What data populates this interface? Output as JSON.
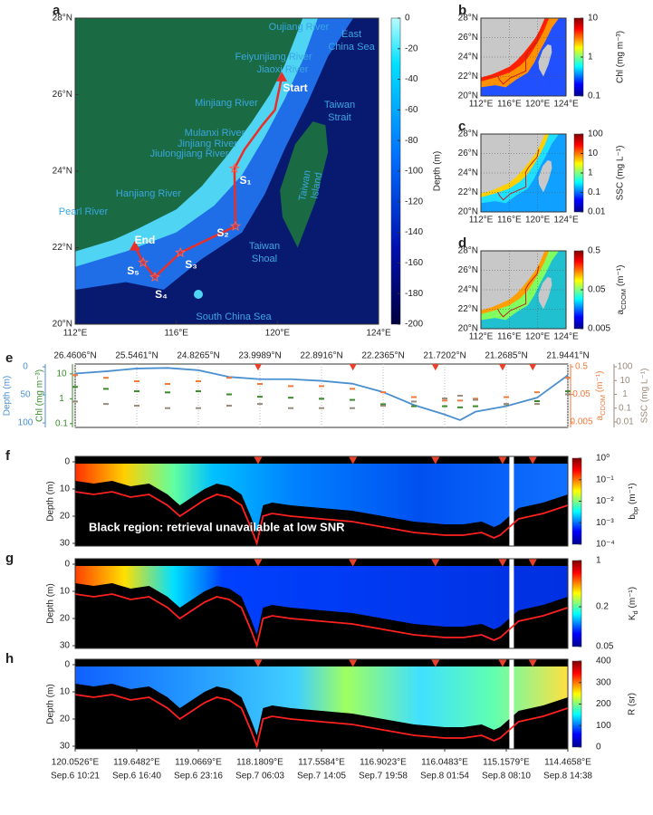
{
  "chart_data": [
    {
      "type": "map",
      "panel": "a",
      "xlim": [
        112,
        124
      ],
      "ylim": [
        20,
        28
      ],
      "xticks": [
        {
          "value": 112,
          "label": "112°E"
        },
        {
          "value": 116,
          "label": "116°E"
        },
        {
          "value": 120,
          "label": "120°E"
        },
        {
          "value": 124,
          "label": "124°E"
        }
      ],
      "yticks": [
        {
          "value": 20,
          "label": "20°N"
        },
        {
          "value": 22,
          "label": "22°N"
        },
        {
          "value": 24,
          "label": "24°N"
        },
        {
          "value": 26,
          "label": "26°N"
        },
        {
          "value": 28,
          "label": "28°N"
        }
      ],
      "colorbar": {
        "label": "Depth (m)",
        "scale": "linear",
        "lim": [
          -200,
          0
        ],
        "ticks": [
          0,
          -20,
          -40,
          -60,
          -80,
          -100,
          -120,
          -140,
          -160,
          -180,
          -200
        ]
      },
      "places": [
        [
          "Oujiang River"
        ],
        [
          "Feiyunjiang River"
        ],
        [
          "Jiaoxi River"
        ],
        [
          "Minjiang River"
        ],
        [
          "Mulanxi River"
        ],
        [
          "Jinjiang River"
        ],
        [
          "Jiulongjiang River"
        ],
        [
          "Hanjiang River"
        ],
        [
          "Pearl River"
        ],
        [
          "East",
          "China Sea"
        ],
        [
          "Taiwan",
          "Strait"
        ],
        [
          "Taiwan",
          "Island"
        ],
        [
          "Taiwan",
          "Shoal"
        ],
        [
          "South China Sea"
        ]
      ],
      "track": {
        "lon": [
          120.17,
          119.9,
          119.4,
          118.7,
          118.3,
          118.34,
          116.16,
          115.15,
          114.69,
          114.36
        ],
        "lat": [
          26.46,
          25.6,
          25.2,
          24.57,
          24.07,
          22.56,
          21.87,
          21.23,
          21.61,
          22.04
        ]
      },
      "stations": [
        {
          "name": "Start",
          "lon": 120.17,
          "lat": 26.46
        },
        {
          "name": "S₁",
          "lon": 118.3,
          "lat": 24.07
        },
        {
          "name": "S₂",
          "lon": 118.34,
          "lat": 22.56
        },
        {
          "name": "S₃",
          "lon": 116.16,
          "lat": 21.87
        },
        {
          "name": "S₄",
          "lon": 115.15,
          "lat": 21.23
        },
        {
          "name": "S₅",
          "lon": 114.69,
          "lat": 21.61
        },
        {
          "name": "End",
          "lon": 114.36,
          "lat": 22.04
        }
      ]
    },
    {
      "type": "minimap",
      "panel": "b",
      "xlim": [
        112,
        124
      ],
      "ylim": [
        20,
        28
      ],
      "xticks": [
        {
          "value": 112,
          "label": "112°E"
        },
        {
          "value": 116,
          "label": "116°E"
        },
        {
          "value": 120,
          "label": "120°E"
        },
        {
          "value": 124,
          "label": "124°E"
        }
      ],
      "yticks": [
        {
          "value": 20,
          "label": "20°N"
        },
        {
          "value": 22,
          "label": "22°N"
        },
        {
          "value": 24,
          "label": "24°N"
        },
        {
          "value": 26,
          "label": "26°N"
        },
        {
          "value": 28,
          "label": "28°N"
        }
      ],
      "colorbar": {
        "label": "Chl (mg m⁻³)",
        "scale": "log",
        "lim": [
          0.1,
          10
        ],
        "ticks": [
          0.1,
          1,
          10
        ]
      }
    },
    {
      "type": "minimap",
      "panel": "c",
      "xlim": [
        112,
        124
      ],
      "ylim": [
        20,
        28
      ],
      "xticks": [
        {
          "value": 112,
          "label": "112°E"
        },
        {
          "value": 116,
          "label": "116°E"
        },
        {
          "value": 120,
          "label": "120°E"
        },
        {
          "value": 124,
          "label": "124°E"
        }
      ],
      "yticks": [
        {
          "value": 20,
          "label": "20°N"
        },
        {
          "value": 22,
          "label": "22°N"
        },
        {
          "value": 24,
          "label": "24°N"
        },
        {
          "value": 26,
          "label": "26°N"
        },
        {
          "value": 28,
          "label": "28°N"
        }
      ],
      "colorbar": {
        "label": "SSC (mg L⁻¹)",
        "scale": "log",
        "lim": [
          0.01,
          100
        ],
        "ticks": [
          0.01,
          0.1,
          1,
          10,
          100
        ]
      }
    },
    {
      "type": "minimap",
      "panel": "d",
      "xlim": [
        112,
        124
      ],
      "ylim": [
        20,
        28
      ],
      "xticks": [
        {
          "value": 112,
          "label": "112°E"
        },
        {
          "value": 116,
          "label": "116°E"
        },
        {
          "value": 120,
          "label": "120°E"
        },
        {
          "value": 124,
          "label": "124°E"
        }
      ],
      "yticks": [
        {
          "value": 20,
          "label": "20°N"
        },
        {
          "value": 22,
          "label": "22°N"
        },
        {
          "value": 24,
          "label": "24°N"
        },
        {
          "value": 26,
          "label": "26°N"
        },
        {
          "value": 28,
          "label": "28°N"
        }
      ],
      "colorbar": {
        "label": [
          {
            "text": "a"
          },
          {
            "text": "CDOM",
            "sub": true
          },
          {
            "text": " (m⁻¹)"
          }
        ],
        "scale": "log",
        "lim": [
          0.005,
          0.5
        ],
        "ticks": [
          0.005,
          0.05,
          0.5
        ]
      }
    },
    {
      "type": "multi_axis",
      "panel": "e",
      "xlim": [
        0,
        8
      ],
      "xticks": [
        {
          "value": 0,
          "label": "26.4606°N"
        },
        {
          "value": 1,
          "label": "25.5461°N"
        },
        {
          "value": 2,
          "label": "24.8265°N"
        },
        {
          "value": 3,
          "label": "23.9989°N"
        },
        {
          "value": 4,
          "label": "22.8916°N"
        },
        {
          "value": 5,
          "label": "22.2365°N"
        },
        {
          "value": 6,
          "label": "21.7202°N"
        },
        {
          "value": 7,
          "label": "21.2685°N"
        },
        {
          "value": 8,
          "label": "21.9441°N"
        }
      ],
      "markers_x": [
        2.97,
        4.51,
        5.85,
        6.94,
        7.43
      ],
      "x": [
        0,
        0.5,
        1,
        1.5,
        2,
        2.5,
        3,
        3.5,
        4,
        4.5,
        5,
        5.5,
        6,
        6.25,
        6.5,
        7,
        7.5,
        8
      ],
      "series": [
        {
          "label": "Depth (m)",
          "color": "#4a8fd0",
          "style": "line",
          "scale": "linear",
          "ylim": [
            -5,
            108
          ],
          "yticks": [
            0,
            50,
            100
          ],
          "side": "left",
          "values": [
            12,
            8,
            3,
            2,
            6,
            18,
            22,
            22,
            25,
            30,
            45,
            68,
            85,
            95,
            80,
            70,
            55,
            15
          ]
        },
        {
          "label": "Chl (mg m⁻³)",
          "color": "#3a8a2a",
          "style": "points",
          "scale": "log",
          "ylim": [
            0.07,
            25
          ],
          "yticks": [
            0.1,
            1,
            10
          ],
          "side": "left",
          "values": [
            3,
            2.5,
            2,
            1.8,
            2,
            1.5,
            1.2,
            1.1,
            1,
            0.9,
            0.6,
            0.5,
            0.5,
            0.45,
            0.5,
            0.6,
            0.8,
            2
          ]
        },
        {
          "label": [
            {
              "text": "a"
            },
            {
              "text": "CDOM",
              "sub": true
            },
            {
              "text": " (m⁻¹)"
            }
          ],
          "color": "#f07a3a",
          "style": "points",
          "scale": "log",
          "ylim": [
            0.0032,
            0.63
          ],
          "yticks": [
            0.005,
            0.05,
            0.5
          ],
          "side": "right",
          "values": [
            0.25,
            0.2,
            0.15,
            0.12,
            0.15,
            0.2,
            0.12,
            0.1,
            0.1,
            0.08,
            0.06,
            0.04,
            0.03,
            0.03,
            0.035,
            0.04,
            0.06,
            0.2
          ]
        },
        {
          "label": "SSC (mg L⁻¹)",
          "color": "#9a8a7a",
          "style": "points",
          "scale": "log",
          "ylim": [
            0.004,
            157
          ],
          "yticks": [
            0.01,
            0.1,
            1,
            10,
            100
          ],
          "side": "right",
          "values": [
            0.3,
            0.2,
            0.15,
            0.1,
            0.1,
            0.15,
            0.2,
            0.1,
            0.1,
            0.1,
            0.15,
            0.3,
            0.5,
            0.8,
            0.4,
            0.2,
            0.2,
            1
          ]
        }
      ]
    },
    {
      "type": "heatmap",
      "panel": "f",
      "xlim": [
        0,
        8
      ],
      "ylim": [
        -2,
        31
      ],
      "yticks": [
        0,
        10,
        20,
        30
      ],
      "ylabel": "Depth (m)",
      "markers_x": [
        2.97,
        4.51,
        5.85,
        6.94,
        7.43
      ],
      "x": [
        0,
        0.3,
        0.6,
        0.9,
        1.2,
        1.5,
        1.7,
        1.9,
        2.1,
        2.3,
        2.5,
        2.7,
        2.85,
        2.95,
        3.05,
        3.2,
        3.5,
        4,
        4.5,
        5,
        5.5,
        6,
        6.3,
        6.6,
        6.8,
        6.9,
        7.05,
        7.2,
        7.6,
        8
      ],
      "bottom_depth": [
        11,
        12,
        11,
        13,
        12,
        16,
        20,
        17,
        14,
        12,
        13,
        16,
        24,
        30,
        20,
        19,
        20,
        21,
        22,
        24,
        26,
        27,
        27,
        26,
        28,
        27,
        24,
        21,
        19,
        16
      ],
      "annotation": "Black region: retrieval unavailable at low SNR",
      "colorbar": {
        "label": [
          {
            "text": "b"
          },
          {
            "text": "bp",
            "sub": true
          },
          {
            "text": " (m⁻¹)"
          }
        ],
        "scale": "log",
        "lim": [
          0.0001,
          1
        ],
        "ticks": [
          {
            "value": 0.0001,
            "label": "10⁻⁴"
          },
          {
            "value": 0.001,
            "label": "10⁻³"
          },
          {
            "value": 0.01,
            "label": "10⁻²"
          },
          {
            "value": 0.1,
            "label": "10⁻¹"
          },
          {
            "value": 1,
            "label": "10⁰"
          }
        ]
      }
    },
    {
      "type": "heatmap",
      "panel": "g",
      "xlim": [
        0,
        8
      ],
      "ylim": [
        -2,
        31
      ],
      "yticks": [
        0,
        10,
        20,
        30
      ],
      "ylabel": "Depth (m)",
      "markers_x": [
        2.97,
        4.51,
        5.85,
        6.94,
        7.43
      ],
      "x": [
        0,
        0.3,
        0.6,
        0.9,
        1.2,
        1.5,
        1.7,
        1.9,
        2.1,
        2.3,
        2.5,
        2.7,
        2.85,
        2.95,
        3.05,
        3.2,
        3.5,
        4,
        4.5,
        5,
        5.5,
        6,
        6.3,
        6.6,
        6.8,
        6.9,
        7.05,
        7.2,
        7.6,
        8
      ],
      "bottom_depth": [
        11,
        12,
        11,
        13,
        12,
        16,
        20,
        17,
        14,
        12,
        13,
        16,
        24,
        30,
        20,
        19,
        20,
        21,
        22,
        24,
        26,
        27,
        27,
        26,
        28,
        27,
        24,
        21,
        19,
        16
      ],
      "colorbar": {
        "label": [
          {
            "text": "K"
          },
          {
            "text": "d",
            "sub": true
          },
          {
            "text": " (m⁻¹)"
          }
        ],
        "scale": "log",
        "lim": [
          0.05,
          1
        ],
        "ticks": [
          0.05,
          0.2,
          1
        ]
      }
    },
    {
      "type": "heatmap",
      "panel": "h",
      "xlim": [
        0,
        8
      ],
      "ylim": [
        -2,
        31
      ],
      "yticks": [
        0,
        10,
        20,
        30
      ],
      "ylabel": "Depth (m)",
      "markers_x": [
        2.97,
        4.51,
        5.85,
        6.94,
        7.43
      ],
      "x": [
        0,
        0.3,
        0.6,
        0.9,
        1.2,
        1.5,
        1.7,
        1.9,
        2.1,
        2.3,
        2.5,
        2.7,
        2.85,
        2.95,
        3.05,
        3.2,
        3.5,
        4,
        4.5,
        5,
        5.5,
        6,
        6.3,
        6.6,
        6.8,
        6.9,
        7.05,
        7.2,
        7.6,
        8
      ],
      "bottom_depth": [
        11,
        12,
        11,
        13,
        12,
        16,
        20,
        17,
        14,
        12,
        13,
        16,
        24,
        30,
        20,
        19,
        20,
        21,
        22,
        24,
        26,
        27,
        27,
        26,
        28,
        27,
        24,
        21,
        19,
        16
      ],
      "colorbar": {
        "label": "R (sr)",
        "scale": "linear",
        "lim": [
          0,
          400
        ],
        "ticks": [
          0,
          100,
          200,
          300,
          400
        ]
      },
      "xticks": [
        {
          "value": 0,
          "label": "120.0526°E"
        },
        {
          "value": 1,
          "label": "119.6482°E"
        },
        {
          "value": 2,
          "label": "119.0669°E"
        },
        {
          "value": 3,
          "label": "118.1809°E"
        },
        {
          "value": 4,
          "label": "117.5584°E"
        },
        {
          "value": 5,
          "label": "116.9023°E"
        },
        {
          "value": 6,
          "label": "116.0483°E"
        },
        {
          "value": 7,
          "label": "115.1579°E"
        },
        {
          "value": 8,
          "label": "114.4658°E"
        }
      ],
      "xtick_times": [
        "Sep.6 10:21",
        "Sep.6 16:40",
        "Sep.6 23:16",
        "Sep.7 06:03",
        "Sep.7 14:05",
        "Sep.7 19:58",
        "Sep.8 01:54",
        "Sep.8 08:10",
        "Sep.8 14:38"
      ]
    }
  ]
}
